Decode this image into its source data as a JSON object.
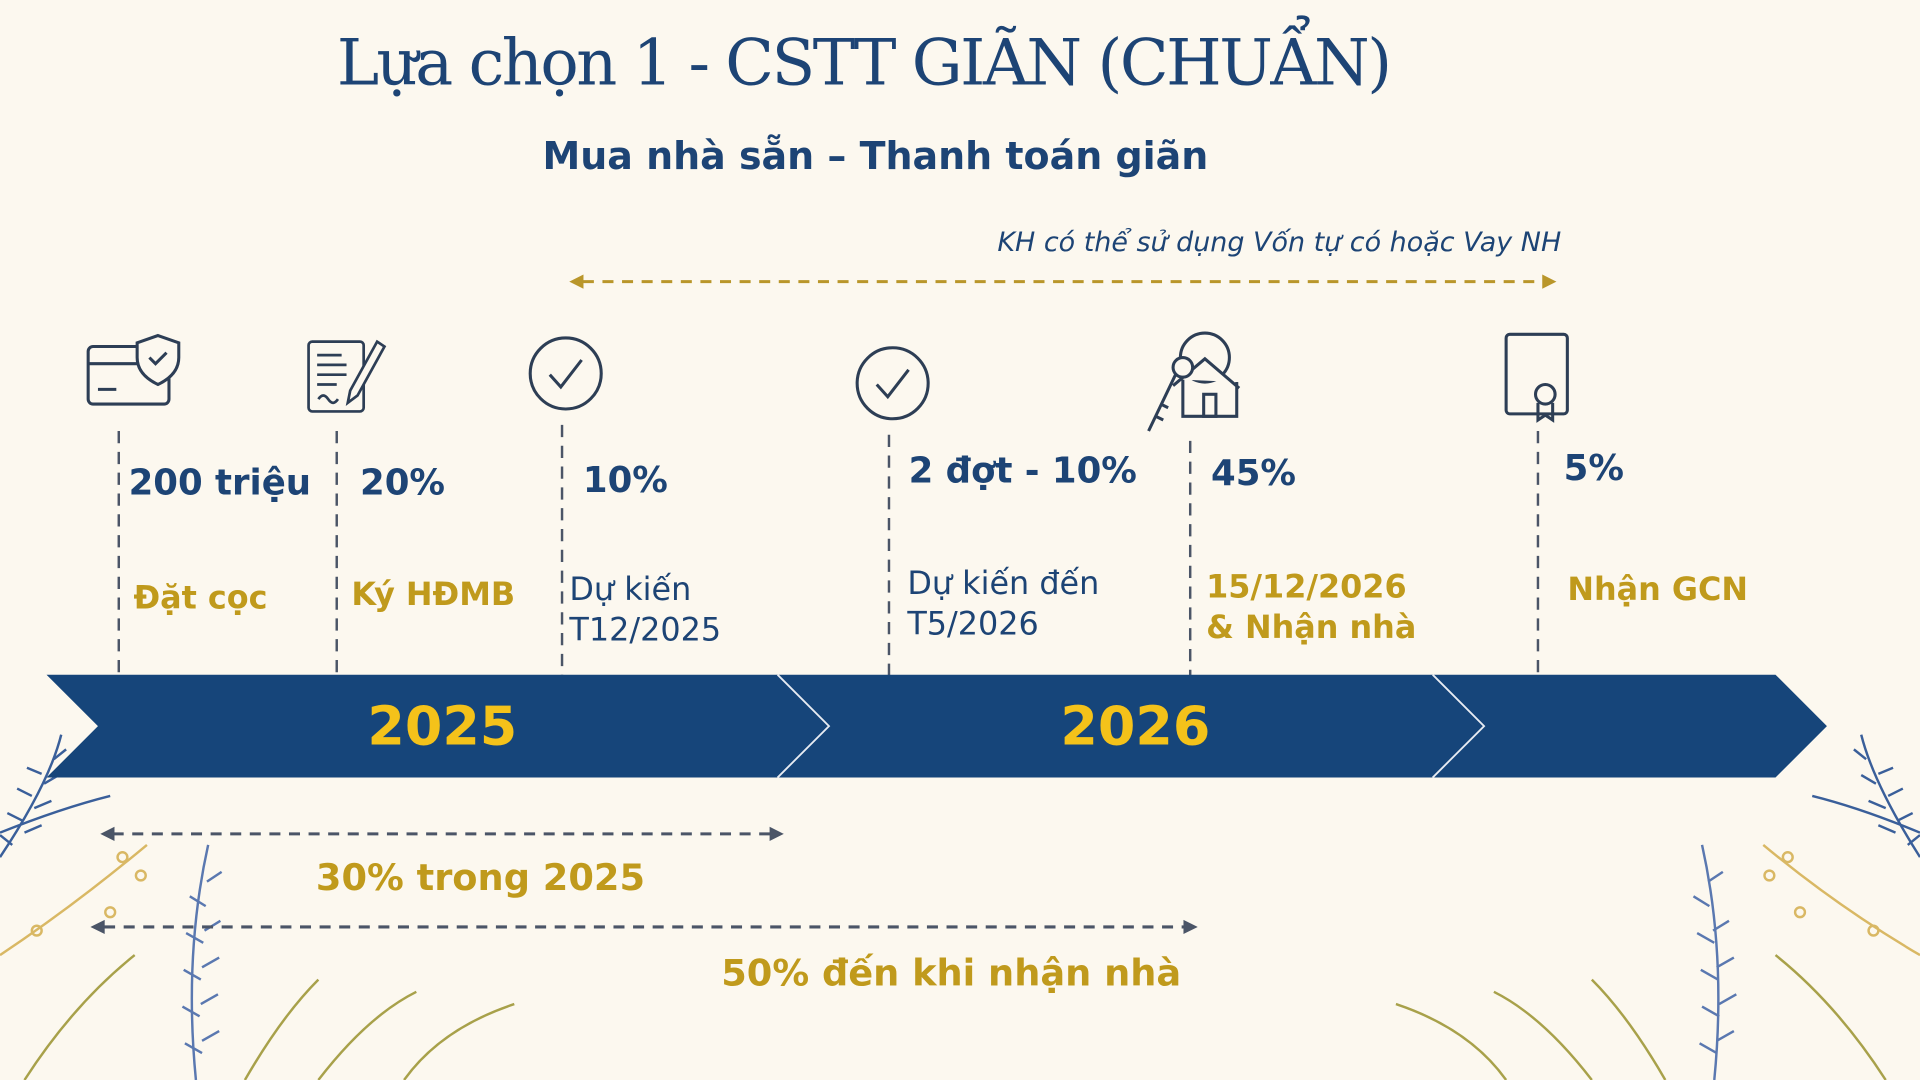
{
  "title": "Lựa chọn 1 - CSTT GIÃN (CHUẨN)",
  "subtitle": "Mua nhà sẵn – Thanh toán giãn",
  "loan_note": "KH có thể sử dụng Vốn tự có hoặc Vay NH",
  "milestones": [
    {
      "icon": "card-shield-icon",
      "amount": "200 triệu",
      "label": "Đặt cọc",
      "label2": ""
    },
    {
      "icon": "contract-pen-icon",
      "amount": "20%",
      "label": "Ký HĐMB",
      "label2": ""
    },
    {
      "icon": "check-circle-icon",
      "amount": "10%",
      "label": "Dự kiến",
      "label2": "T12/2025"
    },
    {
      "icon": "check-circle-icon",
      "amount": "2 đợt - 10%",
      "label": "Dự kiến đến",
      "label2": "T5/2026"
    },
    {
      "icon": "house-key-icon",
      "amount": "45%",
      "label": "15/12/2026",
      "label2": "& Nhận nhà"
    },
    {
      "icon": "certificate-icon",
      "amount": "5%",
      "label": "Nhận GCN",
      "label2": ""
    }
  ],
  "years": [
    "2025",
    "2026"
  ],
  "spans": {
    "first": "30% trong 2025",
    "second": "50% đến khi nhận nhà"
  },
  "colors": {
    "navy": "#16457a",
    "gold": "#c09a1c",
    "year": "#f4c21a",
    "background": "#fcf8ef"
  }
}
